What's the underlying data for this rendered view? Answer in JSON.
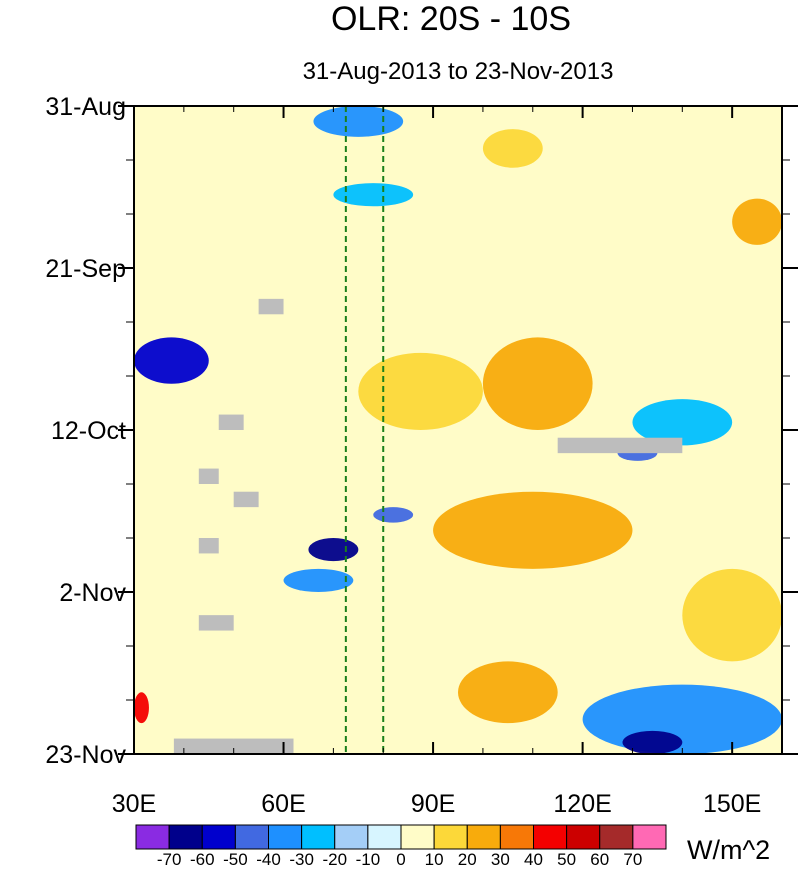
{
  "chart_data": {
    "type": "heatmap",
    "title": "OLR: 20S - 10S",
    "subtitle": "31-Aug-2013 to 23-Nov-2013",
    "xlabel": "",
    "ylabel": "",
    "xlim": [
      30,
      160
    ],
    "ylim_days": [
      0,
      84
    ],
    "x_ticks": [
      {
        "value": 30,
        "label": "30E"
      },
      {
        "value": 60,
        "label": "60E"
      },
      {
        "value": 90,
        "label": "90E"
      },
      {
        "value": 120,
        "label": "120E"
      },
      {
        "value": 150,
        "label": "150E"
      }
    ],
    "y_ticks": [
      {
        "day": 0,
        "label": "31-Aug"
      },
      {
        "day": 21,
        "label": "21-Sep"
      },
      {
        "day": 42,
        "label": "12-Oct"
      },
      {
        "day": 63,
        "label": "2-Nov"
      },
      {
        "day": 84,
        "label": "23-Nov"
      }
    ],
    "reference_lines_lon": [
      72.5,
      80
    ],
    "units": "W/m^2",
    "colorbar": {
      "levels": [
        "-70",
        "-60",
        "-50",
        "-40",
        "-30",
        "-20",
        "-10",
        "0",
        "10",
        "20",
        "30",
        "40",
        "50",
        "60",
        "70"
      ],
      "colors": [
        "#8a2be2",
        "#00008b",
        "#0000cd",
        "#4169e1",
        "#1e90ff",
        "#00bfff",
        "#a4cef7",
        "#d7f5ff",
        "#fffcc8",
        "#fcd839",
        "#f8ab0c",
        "#f77807",
        "#f40000",
        "#cc0000",
        "#a52a2a",
        "#ff69b4"
      ]
    },
    "features": [
      {
        "lon": 35,
        "day": 0,
        "dlon": 40,
        "dday": 14,
        "value": 5
      },
      {
        "lon": 66,
        "day": 0,
        "dlon": 18,
        "dday": 4,
        "value": -35
      },
      {
        "lon": 70,
        "day": 10,
        "dlon": 16,
        "dday": 3,
        "value": -25
      },
      {
        "lon": 100,
        "day": 3,
        "dlon": 12,
        "dday": 5,
        "value": 15
      },
      {
        "lon": 150,
        "day": 12,
        "dlon": 10,
        "dday": 6,
        "value": 20
      },
      {
        "lon": 30,
        "day": 30,
        "dlon": 15,
        "dday": 6,
        "value": -60
      },
      {
        "lon": 75,
        "day": 32,
        "dlon": 25,
        "dday": 10,
        "value": 15
      },
      {
        "lon": 100,
        "day": 30,
        "dlon": 22,
        "dday": 12,
        "value": 20
      },
      {
        "lon": 130,
        "day": 38,
        "dlon": 20,
        "dday": 6,
        "value": -25
      },
      {
        "lon": 127,
        "day": 44,
        "dlon": 8,
        "dday": 2,
        "value": -45
      },
      {
        "lon": 65,
        "day": 56,
        "dlon": 10,
        "dday": 3,
        "value": -65
      },
      {
        "lon": 78,
        "day": 52,
        "dlon": 8,
        "dday": 2,
        "value": -50
      },
      {
        "lon": 60,
        "day": 60,
        "dlon": 14,
        "dday": 3,
        "value": -35
      },
      {
        "lon": 90,
        "day": 50,
        "dlon": 40,
        "dday": 10,
        "value": 20
      },
      {
        "lon": 30,
        "day": 76,
        "dlon": 3,
        "dday": 4,
        "value": 45
      },
      {
        "lon": 120,
        "day": 75,
        "dlon": 40,
        "dday": 9,
        "value": -40
      },
      {
        "lon": 128,
        "day": 81,
        "dlon": 12,
        "dday": 3,
        "value": -65
      },
      {
        "lon": 95,
        "day": 72,
        "dlon": 20,
        "dday": 8,
        "value": 20
      },
      {
        "lon": 140,
        "day": 60,
        "dlon": 20,
        "dday": 12,
        "value": 15
      }
    ],
    "missing_regions": [
      {
        "lon0": 55,
        "lon1": 60,
        "day0": 25,
        "day1": 27
      },
      {
        "lon0": 47,
        "lon1": 52,
        "day0": 40,
        "day1": 42
      },
      {
        "lon0": 43,
        "lon1": 47,
        "day0": 47,
        "day1": 49
      },
      {
        "lon0": 50,
        "lon1": 55,
        "day0": 50,
        "day1": 52
      },
      {
        "lon0": 43,
        "lon1": 47,
        "day0": 56,
        "day1": 58
      },
      {
        "lon0": 43,
        "lon1": 50,
        "day0": 66,
        "day1": 68
      },
      {
        "lon0": 38,
        "lon1": 62,
        "day0": 82,
        "day1": 84
      },
      {
        "lon0": 115,
        "lon1": 140,
        "day0": 43,
        "day1": 45
      }
    ]
  }
}
